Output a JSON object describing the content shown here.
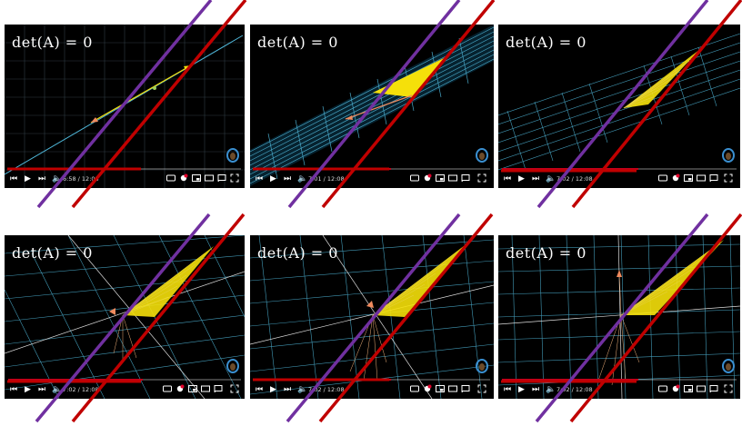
{
  "overlay_label": "det(A) = 0",
  "colors": {
    "purple_line": "#7030a0",
    "red_line": "#c00000",
    "grid": "#4fb6d8",
    "vector_yellow": "#f5e00a",
    "vector_orange": "#f08a5d",
    "progress": "#c4001a"
  },
  "frames": [
    {
      "time": "6:58 / 12:08",
      "progress": 0.57
    },
    {
      "time": "7:01 / 12:08",
      "progress": 0.58
    },
    {
      "time": "7:02 / 12:08",
      "progress": 0.58
    },
    {
      "time": "7:02 / 12:08",
      "progress": 0.58
    },
    {
      "time": "7:02 / 12:08",
      "progress": 0.58
    },
    {
      "time": "7:02 / 12:08",
      "progress": 0.58
    }
  ]
}
